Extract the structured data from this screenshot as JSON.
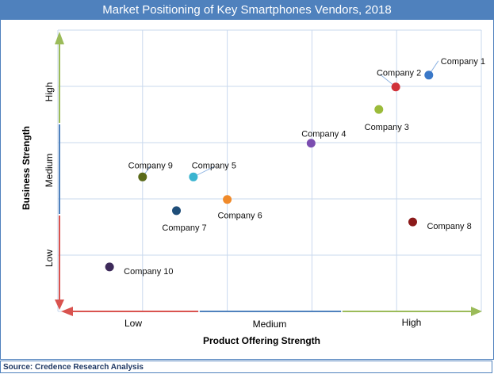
{
  "chart_data": {
    "type": "scatter",
    "title": "Market Positioning of Key Smartphones  Vendors, 2018",
    "xlabel": "Product Offering Strength",
    "ylabel": "Business Strength",
    "x_tick_labels": [
      "Low",
      "Medium",
      "High"
    ],
    "y_tick_labels": [
      "Low",
      "Medium",
      "High"
    ],
    "xlim": [
      0,
      5
    ],
    "ylim": [
      0,
      5
    ],
    "grid": true,
    "points": [
      {
        "label": "Company 1",
        "x": 4.38,
        "y": 4.2,
        "color": "#3a78c8"
      },
      {
        "label": "Company 2",
        "x": 3.99,
        "y": 3.99,
        "color": "#d0323a"
      },
      {
        "label": "Company 3",
        "x": 3.79,
        "y": 3.59,
        "color": "#9bbb3a"
      },
      {
        "label": "Company 4",
        "x": 2.99,
        "y": 2.99,
        "color": "#7b4db0"
      },
      {
        "label": "Company 5",
        "x": 1.6,
        "y": 2.39,
        "color": "#3ab4d0"
      },
      {
        "label": "Company 6",
        "x": 2.0,
        "y": 1.99,
        "color": "#f08a2a"
      },
      {
        "label": "Company 7",
        "x": 1.4,
        "y": 1.79,
        "color": "#1f4e79"
      },
      {
        "label": "Company 8",
        "x": 4.19,
        "y": 1.59,
        "color": "#8b1a1a"
      },
      {
        "label": "Company 9",
        "x": 1.0,
        "y": 2.39,
        "color": "#5a6a1a"
      },
      {
        "label": "Company 10",
        "x": 0.61,
        "y": 0.79,
        "color": "#3d2a5a"
      }
    ],
    "axis_colors": {
      "low": "#d9534f",
      "medium": "#4f81bd",
      "high": "#9bbb59"
    }
  },
  "source": "Source: Credence Research Analysis"
}
